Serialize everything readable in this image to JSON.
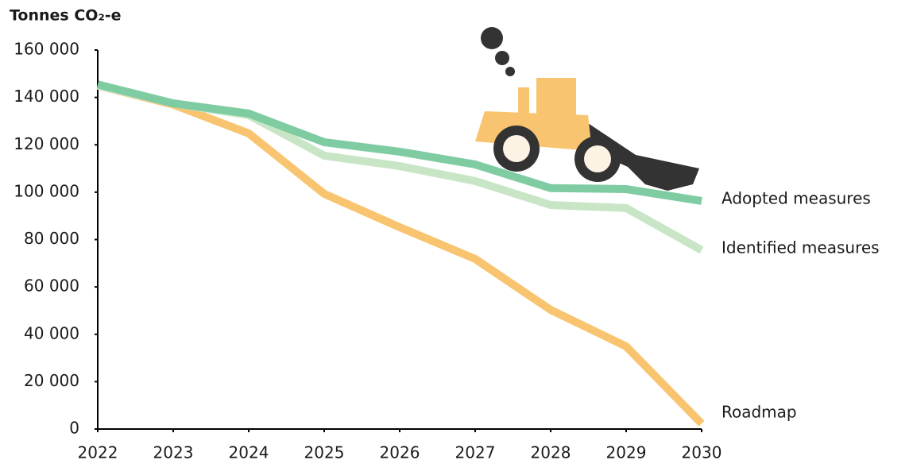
{
  "chart_data": {
    "type": "line",
    "y_label": "Tonnes CO₂-e",
    "x": [
      2022,
      2023,
      2024,
      2025,
      2026,
      2027,
      2028,
      2029,
      2030
    ],
    "xlim": [
      2022,
      2030
    ],
    "xticks": [
      2022,
      2023,
      2024,
      2025,
      2026,
      2027,
      2028,
      2029,
      2030
    ],
    "ylim": [
      0,
      160000
    ],
    "yticks": [
      0,
      {
        "value": 20000,
        "label": "20 000"
      },
      {
        "value": 40000,
        "label": "40 000"
      },
      {
        "value": 60000,
        "label": "60 000"
      },
      {
        "value": 80000,
        "label": "80 000"
      },
      {
        "value": 100000,
        "label": "100 000"
      },
      {
        "value": 120000,
        "label": "120 000"
      },
      {
        "value": 140000,
        "label": "140 000"
      },
      {
        "value": 160000,
        "label": "160 000"
      }
    ],
    "grid": false,
    "series": [
      {
        "name": "Adopted measures",
        "color": "#7fcca3",
        "values": [
          145500,
          137500,
          133200,
          121100,
          117100,
          111700,
          101700,
          101300,
          96300
        ]
      },
      {
        "name": "Identified measures",
        "color": "#c8e6c5",
        "values": [
          145000,
          137500,
          132500,
          115400,
          111000,
          104700,
          94600,
          93300,
          75500
        ]
      },
      {
        "name": "Roadmap",
        "color": "#f9c46f",
        "values": [
          145000,
          137000,
          124800,
          99300,
          85200,
          71800,
          50300,
          34900,
          2300
        ]
      }
    ]
  }
}
